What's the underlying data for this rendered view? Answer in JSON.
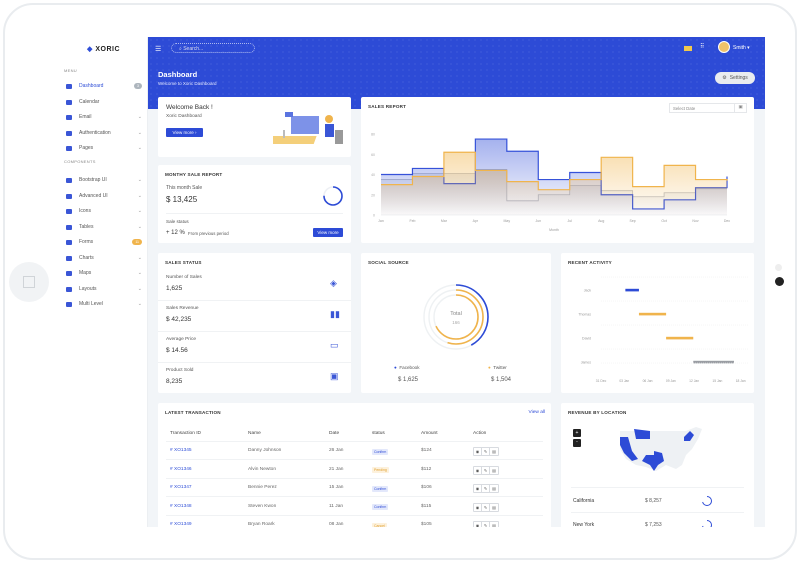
{
  "app": {
    "logo": "XORIC"
  },
  "sidebar": {
    "sections": {
      "menu": "MENU",
      "components": "COMPONENTS"
    },
    "items": [
      {
        "label": "Dashboard",
        "icon": "dashboard-icon",
        "active": true,
        "badge": "3",
        "badge_color": "#adb5bd"
      },
      {
        "label": "Calendar",
        "icon": "calendar-icon"
      },
      {
        "label": "Email",
        "icon": "email-icon",
        "chevron": true
      },
      {
        "label": "Authentication",
        "icon": "user-icon",
        "chevron": true
      },
      {
        "label": "Pages",
        "icon": "pages-icon",
        "chevron": true
      },
      {
        "label": "Bootstrap UI",
        "icon": "bootstrap-icon",
        "chevron": true
      },
      {
        "label": "Advanced UI",
        "icon": "advanced-icon",
        "chevron": true
      },
      {
        "label": "Icons",
        "icon": "icons-icon",
        "chevron": true
      },
      {
        "label": "Tables",
        "icon": "table-icon",
        "chevron": true
      },
      {
        "label": "Forms",
        "icon": "forms-icon",
        "badge": "11",
        "badge_color": "#f0b44c"
      },
      {
        "label": "Charts",
        "icon": "chart-icon",
        "chevron": true
      },
      {
        "label": "Maps",
        "icon": "map-icon",
        "chevron": true
      },
      {
        "label": "Layouts",
        "icon": "layout-icon",
        "chevron": true
      },
      {
        "label": "Multi Level",
        "icon": "multilevel-icon",
        "chevron": true
      }
    ]
  },
  "header": {
    "search_placeholder": "Search...",
    "user": "Smith",
    "page_title": "Dashboard",
    "page_subtitle": "Welcome to Xoric Dashboard",
    "settings_label": "Settings"
  },
  "welcome": {
    "title": "Welcome Back !",
    "subtitle": "Xoric Dashboard",
    "button": "View more"
  },
  "monthly": {
    "title": "MONTHY SALE REPORT",
    "label": "This month Sale",
    "value": "$ 13,425",
    "status_label": "Sale status",
    "change": "+ 12 %",
    "change_note": "From previous period",
    "button": "View more",
    "ring_fraction": 0.75
  },
  "sales_status": {
    "title": "SALES STATUS",
    "items": [
      {
        "label": "Number of Sales",
        "value": "1,625",
        "icon": "layers-icon"
      },
      {
        "label": "Sales Revenue",
        "value": "$ 42,235",
        "icon": "bar-chart-icon"
      },
      {
        "label": "Average Price",
        "value": "$ 14.56",
        "icon": "ticket-icon"
      },
      {
        "label": "Product Sold",
        "value": "8,235",
        "icon": "box-icon"
      }
    ]
  },
  "sales_report": {
    "title": "SALES REPORT",
    "date_placeholder": "Select Date"
  },
  "chart_data": [
    {
      "type": "area",
      "title": "SALES REPORT",
      "xlabel": "Month",
      "ylabel": "",
      "step": true,
      "categories": [
        "Jan",
        "Feb",
        "Mar",
        "Apr",
        "May",
        "Jun",
        "Jul",
        "Aug",
        "Sep",
        "Oct",
        "Nov",
        "Dec"
      ],
      "ylim": [
        0,
        80
      ],
      "yticks": [
        0,
        20,
        40,
        60,
        80
      ],
      "series": [
        {
          "values": [
            35,
            41,
            41,
            45,
            14,
            20,
            29,
            24,
            18,
            22,
            26,
            26
          ],
          "color": "#b8bcc4"
        },
        {
          "values": [
            40,
            46,
            31,
            75,
            63,
            35,
            42,
            20,
            6,
            15,
            27,
            38
          ],
          "color": "#3652d9"
        },
        {
          "values": [
            30,
            38,
            62,
            44,
            33,
            25,
            35,
            57,
            28,
            49,
            35,
            34
          ],
          "color": "#f0b44c"
        }
      ]
    },
    {
      "type": "pie",
      "title": "SOCIAL SOURCE",
      "center_label": "Total",
      "center_value": "166",
      "series": [
        {
          "name": "Facebook",
          "value": "$ 1,625",
          "fraction": 0.42,
          "color": "#2d4bd6"
        },
        {
          "name": "Twitter",
          "value": "$ 1,504",
          "fraction": 0.55,
          "color": "#f0b44c"
        },
        {
          "fraction": 0.68,
          "color": "#f0b44c"
        }
      ]
    },
    {
      "type": "bar",
      "title": "RECENT ACTIVITY",
      "orientation": "horizontal",
      "categories": [
        "Jack",
        "Thomas",
        "David",
        "James"
      ],
      "xticks": [
        "31 Dec",
        "03 Jan",
        "06 Jan",
        "09 Jan",
        "12 Jan",
        "15 Jan",
        "18 Jan"
      ],
      "ranges": [
        {
          "start": "02 Jan",
          "end": "04 Jan",
          "color": "#2d4bd6"
        },
        {
          "start": "04 Jan",
          "end": "08 Jan",
          "color": "#f0b44c"
        },
        {
          "start": "08 Jan",
          "end": "12 Jan",
          "color": "#f0b44c"
        },
        {
          "start": "12 Jan",
          "end": "18 Jan",
          "color": "#9a9da3"
        }
      ]
    }
  ],
  "transactions": {
    "title": "LATEST TRANSACTION",
    "view_all": "View all",
    "columns": [
      "Transaction ID",
      "Name",
      "Date",
      "status",
      "Amount",
      "Action"
    ],
    "rows": [
      {
        "id": "# XO1345",
        "name": "Danny Johnson",
        "date": "26 Jan",
        "status": "Confirm",
        "amount": "$124"
      },
      {
        "id": "# XO1346",
        "name": "Alvin Newton",
        "date": "21 Jan",
        "status": "Pending",
        "amount": "$112"
      },
      {
        "id": "# XO1347",
        "name": "Bennie Perez",
        "date": "15 Jan",
        "status": "Confirm",
        "amount": "$106"
      },
      {
        "id": "# XO1348",
        "name": "Steven Kwon",
        "date": "11 Jan",
        "status": "Confirm",
        "amount": "$115"
      },
      {
        "id": "# XO1349",
        "name": "Bryan Roark",
        "date": "08 Jan",
        "status": "Cancel",
        "amount": "$105"
      }
    ]
  },
  "revenue_location": {
    "title": "REVENUE BY LOCATION",
    "zoom_in": "+",
    "zoom_out": "-",
    "rows": [
      {
        "location": "California",
        "value": "$ 8,257"
      },
      {
        "location": "New York",
        "value": "$ 7,253"
      }
    ]
  },
  "colors": {
    "primary": "#2d4bd6",
    "warning": "#f0b44c",
    "background": "#f2f5f8"
  }
}
